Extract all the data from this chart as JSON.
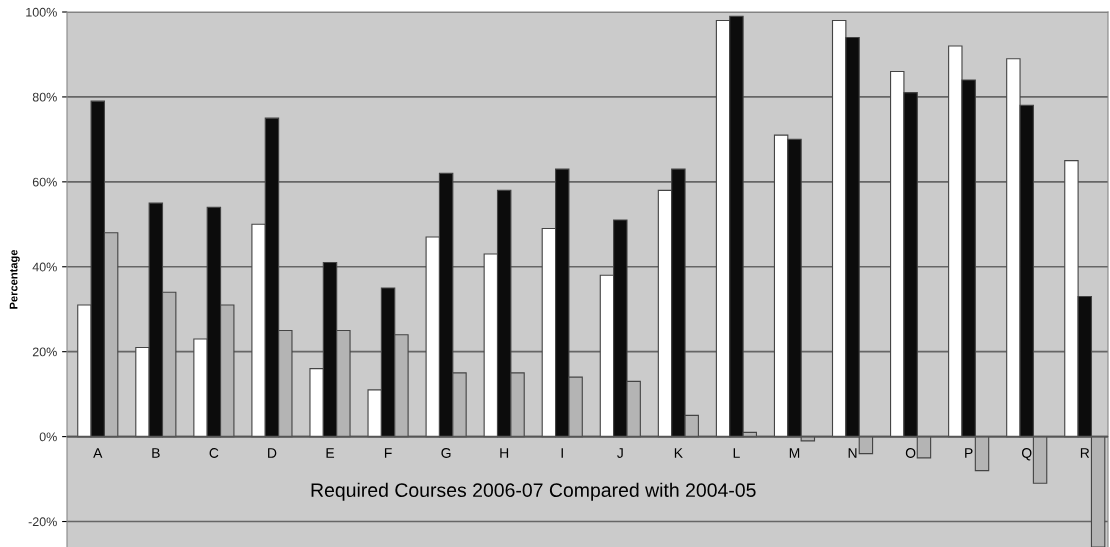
{
  "chart_data": {
    "type": "bar",
    "xlabel": "Required Courses 2006-07 Compared with 2004-05",
    "ylabel": "Percentage",
    "categories": [
      "A",
      "B",
      "C",
      "D",
      "E",
      "F",
      "G",
      "H",
      "I",
      "J",
      "K",
      "L",
      "M",
      "N",
      "O",
      "P",
      "Q",
      "R"
    ],
    "series": [
      {
        "color": "#ffffff",
        "values": [
          31,
          21,
          23,
          50,
          16,
          11,
          47,
          43,
          49,
          38,
          58,
          98,
          71,
          98,
          86,
          92,
          89,
          65
        ]
      },
      {
        "color": "#0c0c0c",
        "values": [
          79,
          55,
          54,
          75,
          41,
          35,
          62,
          58,
          63,
          51,
          63,
          99,
          70,
          94,
          81,
          84,
          78,
          33
        ]
      },
      {
        "color": "#b4b4b4",
        "values": [
          48,
          34,
          31,
          25,
          25,
          24,
          15,
          15,
          14,
          13,
          5,
          1,
          -1,
          -4,
          -5,
          -8,
          -11,
          -26
        ]
      }
    ],
    "ylim": [
      -26,
      100
    ],
    "yticks": [
      {
        "value": -20,
        "label": "-20%"
      },
      {
        "value": 0,
        "label": "0%"
      },
      {
        "value": 20,
        "label": "20%"
      },
      {
        "value": 40,
        "label": "40%"
      },
      {
        "value": 60,
        "label": "60%"
      },
      {
        "value": 80,
        "label": "80%"
      },
      {
        "value": 100,
        "label": "100%"
      }
    ],
    "grid": "y"
  }
}
